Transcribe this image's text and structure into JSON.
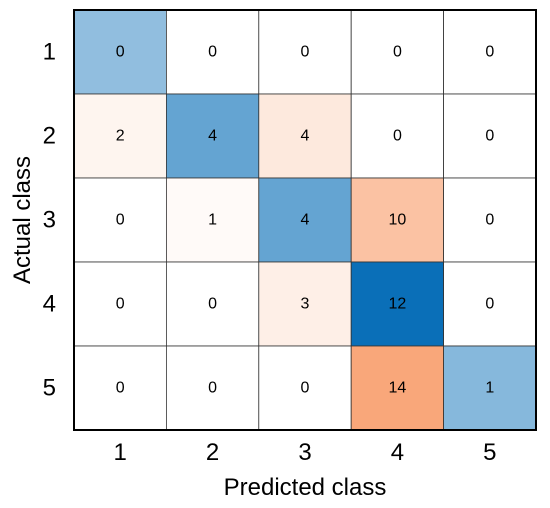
{
  "chart_data": {
    "type": "heatmap",
    "title": "",
    "xlabel": "Predicted class",
    "ylabel": "Actual class",
    "x_categories": [
      "1",
      "2",
      "3",
      "4",
      "5"
    ],
    "y_categories": [
      "1",
      "2",
      "3",
      "4",
      "5"
    ],
    "values": [
      [
        0,
        0,
        0,
        0,
        0
      ],
      [
        2,
        4,
        4,
        0,
        0
      ],
      [
        0,
        1,
        4,
        10,
        0
      ],
      [
        0,
        0,
        3,
        12,
        0
      ],
      [
        0,
        0,
        0,
        14,
        1
      ]
    ],
    "diagonal_color_scale": [
      "#ffffff",
      "#0a6fb8"
    ],
    "off_diagonal_color_scale": [
      "#ffffff",
      "#f9a77a"
    ],
    "grid": true
  }
}
